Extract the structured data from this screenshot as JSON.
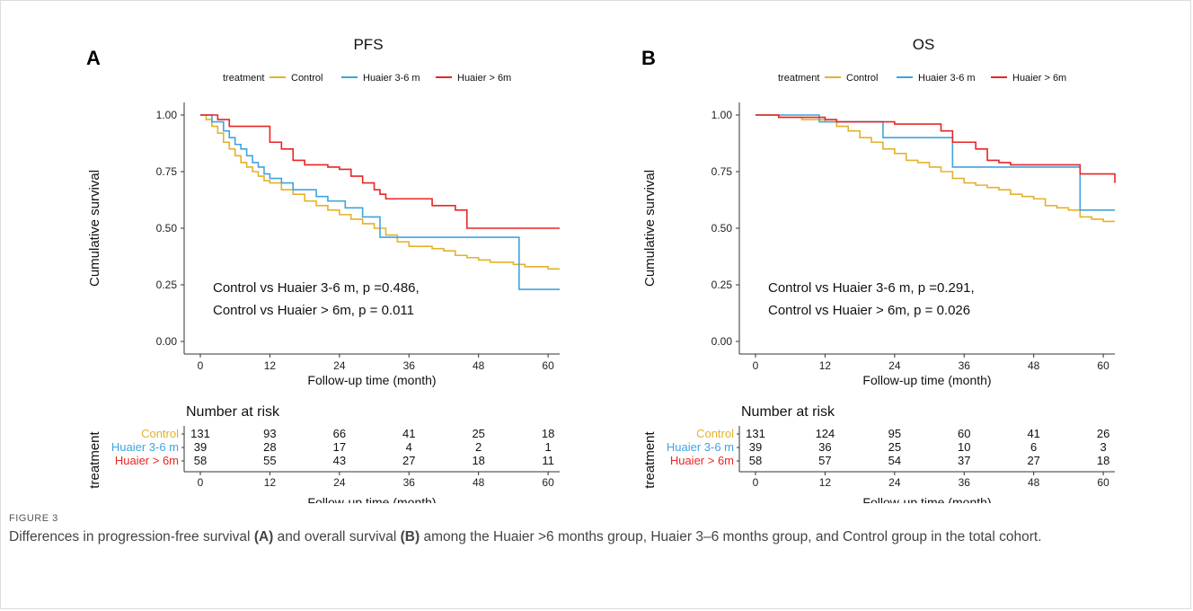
{
  "figure": {
    "label": "FIGURE 3",
    "caption_parts": [
      {
        "text": "Differences in progression-free survival ",
        "bold": false
      },
      {
        "text": "(A)",
        "bold": true
      },
      {
        "text": " and overall survival ",
        "bold": false
      },
      {
        "text": "(B)",
        "bold": true
      },
      {
        "text": " among the Huaier >6 months group, Huaier 3–6 months group, and Control group in the total cohort.",
        "bold": false
      }
    ]
  },
  "colors": {
    "control": "#E3B22A",
    "huaier_3_6": "#3FA4DF",
    "huaier_gt6": "#E82525",
    "axis": "#333333",
    "text": "#111111"
  },
  "chart_data": [
    {
      "type": "line",
      "step": true,
      "panel_label": "A",
      "title": "PFS",
      "xlabel": "Follow-up time (month)",
      "ylabel": "Cumulative survival",
      "xlim": [
        0,
        62
      ],
      "ylim": [
        0,
        1
      ],
      "xticks": [
        0,
        12,
        24,
        36,
        48,
        60
      ],
      "yticks": [
        "0.00",
        "0.25",
        "0.50",
        "0.75",
        "1.00"
      ],
      "grid": false,
      "legend": {
        "title": "treatment",
        "position": "top"
      },
      "annotations": [
        "Control vs Huaier 3-6 m, p =0.486,",
        "Control vs Huaier > 6m, p = 0.011"
      ],
      "series": [
        {
          "name": "Control",
          "color_key": "control",
          "x": [
            0,
            1,
            2,
            3,
            4,
            5,
            6,
            7,
            8,
            9,
            10,
            11,
            12,
            14,
            16,
            18,
            20,
            22,
            24,
            26,
            28,
            30,
            32,
            34,
            36,
            38,
            40,
            42,
            44,
            46,
            48,
            50,
            52,
            54,
            56,
            58,
            60,
            62
          ],
          "y": [
            1.0,
            0.98,
            0.95,
            0.92,
            0.88,
            0.85,
            0.82,
            0.79,
            0.77,
            0.75,
            0.73,
            0.71,
            0.7,
            0.67,
            0.65,
            0.62,
            0.6,
            0.58,
            0.56,
            0.54,
            0.52,
            0.5,
            0.47,
            0.44,
            0.42,
            0.42,
            0.41,
            0.4,
            0.38,
            0.37,
            0.36,
            0.35,
            0.35,
            0.34,
            0.33,
            0.33,
            0.32,
            0.32
          ]
        },
        {
          "name": "Huaier 3-6 m",
          "color_key": "huaier_3_6",
          "x": [
            0,
            2,
            4,
            5,
            6,
            7,
            8,
            9,
            10,
            11,
            12,
            14,
            16,
            18,
            20,
            22,
            24,
            25,
            28,
            30,
            31,
            34,
            36,
            40,
            44,
            48,
            52,
            55,
            56,
            58,
            60,
            62
          ],
          "y": [
            1.0,
            0.97,
            0.93,
            0.9,
            0.87,
            0.85,
            0.82,
            0.79,
            0.77,
            0.74,
            0.72,
            0.7,
            0.67,
            0.67,
            0.64,
            0.62,
            0.62,
            0.59,
            0.55,
            0.55,
            0.46,
            0.46,
            0.46,
            0.46,
            0.46,
            0.46,
            0.46,
            0.23,
            0.23,
            0.23,
            0.23,
            0.23
          ]
        },
        {
          "name": "Huaier > 6m",
          "color_key": "huaier_gt6",
          "x": [
            0,
            3,
            5,
            6,
            12,
            14,
            16,
            18,
            20,
            22,
            24,
            26,
            28,
            30,
            31,
            32,
            36,
            40,
            44,
            46,
            48,
            52,
            56,
            60,
            62
          ],
          "y": [
            1.0,
            0.98,
            0.95,
            0.95,
            0.88,
            0.85,
            0.8,
            0.78,
            0.78,
            0.77,
            0.76,
            0.73,
            0.7,
            0.67,
            0.65,
            0.63,
            0.63,
            0.6,
            0.58,
            0.5,
            0.5,
            0.5,
            0.5,
            0.5,
            0.5
          ]
        }
      ],
      "risk_table": {
        "title": "Number at risk",
        "row_axis_label": "treatment",
        "xlabel": "Follow-up time (month)",
        "times": [
          0,
          12,
          24,
          36,
          48,
          60
        ],
        "rows": [
          {
            "name": "Control",
            "color_key": "control",
            "values": [
              "131",
              "93",
              "66",
              "41",
              "25",
              "18"
            ]
          },
          {
            "name": "Huaier 3-6 m",
            "color_key": "huaier_3_6",
            "values": [
              "39",
              "28",
              "17",
              "4",
              "2",
              "1"
            ]
          },
          {
            "name": "Huaier > 6m",
            "color_key": "huaier_gt6",
            "values": [
              "58",
              "55",
              "43",
              "27",
              "18",
              "11"
            ]
          }
        ]
      }
    },
    {
      "type": "line",
      "step": true,
      "panel_label": "B",
      "title": "OS",
      "xlabel": "Follow-up time (month)",
      "ylabel": "Cumulative survival",
      "xlim": [
        0,
        62
      ],
      "ylim": [
        0,
        1
      ],
      "xticks": [
        0,
        12,
        24,
        36,
        48,
        60
      ],
      "yticks": [
        "0.00",
        "0.25",
        "0.50",
        "0.75",
        "1.00"
      ],
      "grid": false,
      "legend": {
        "title": "treatment",
        "position": "top"
      },
      "annotations": [
        "Control vs Huaier 3-6 m, p =0.291,",
        "Control vs Huaier > 6m, p = 0.026"
      ],
      "series": [
        {
          "name": "Control",
          "color_key": "control",
          "x": [
            0,
            4,
            8,
            12,
            14,
            16,
            18,
            20,
            22,
            24,
            26,
            28,
            30,
            32,
            34,
            36,
            38,
            40,
            42,
            44,
            46,
            48,
            50,
            52,
            54,
            56,
            58,
            60,
            62
          ],
          "y": [
            1.0,
            0.99,
            0.98,
            0.97,
            0.95,
            0.93,
            0.9,
            0.88,
            0.85,
            0.83,
            0.8,
            0.79,
            0.77,
            0.75,
            0.72,
            0.7,
            0.69,
            0.68,
            0.67,
            0.65,
            0.64,
            0.63,
            0.6,
            0.59,
            0.58,
            0.55,
            0.54,
            0.53,
            0.53
          ]
        },
        {
          "name": "Huaier 3-6 m",
          "color_key": "huaier_3_6",
          "x": [
            0,
            10,
            11,
            20,
            22,
            30,
            32,
            34,
            36,
            40,
            44,
            48,
            52,
            55,
            56,
            58,
            60,
            62
          ],
          "y": [
            1.0,
            1.0,
            0.97,
            0.97,
            0.9,
            0.9,
            0.9,
            0.77,
            0.77,
            0.77,
            0.77,
            0.77,
            0.77,
            0.77,
            0.58,
            0.58,
            0.58,
            0.58
          ]
        },
        {
          "name": "Huaier > 6m",
          "color_key": "huaier_gt6",
          "x": [
            0,
            4,
            12,
            14,
            20,
            24,
            28,
            30,
            32,
            34,
            36,
            38,
            40,
            42,
            44,
            48,
            52,
            56,
            60,
            62
          ],
          "y": [
            1.0,
            0.99,
            0.98,
            0.97,
            0.97,
            0.96,
            0.96,
            0.96,
            0.93,
            0.88,
            0.88,
            0.85,
            0.8,
            0.79,
            0.78,
            0.78,
            0.78,
            0.74,
            0.74,
            0.7
          ]
        }
      ],
      "risk_table": {
        "title": "Number at risk",
        "row_axis_label": "treatment",
        "xlabel": "Follow-up time (month)",
        "times": [
          0,
          12,
          24,
          36,
          48,
          60
        ],
        "rows": [
          {
            "name": "Control",
            "color_key": "control",
            "values": [
              "131",
              "124",
              "95",
              "60",
              "41",
              "26"
            ]
          },
          {
            "name": "Huaier 3-6 m",
            "color_key": "huaier_3_6",
            "values": [
              "39",
              "36",
              "25",
              "10",
              "6",
              "3"
            ]
          },
          {
            "name": "Huaier > 6m",
            "color_key": "huaier_gt6",
            "values": [
              "58",
              "57",
              "54",
              "37",
              "27",
              "18"
            ]
          }
        ]
      }
    }
  ]
}
